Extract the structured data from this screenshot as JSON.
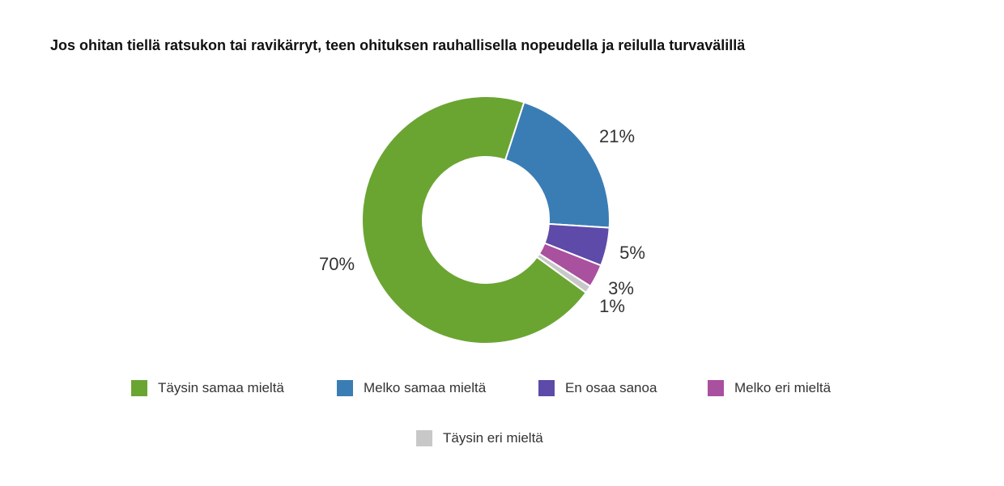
{
  "chart_data": {
    "type": "pie",
    "title": "Jos ohitan tiellä ratsukon tai ravikärryt, teen ohituksen rauhallisella nopeudella ja reilulla turvavälillä",
    "categories": [
      "Täysin samaa mieltä",
      "Melko samaa mieltä",
      "En osaa sanoa",
      "Melko eri mieltä",
      "Täysin eri mieltä"
    ],
    "values": [
      70,
      21,
      5,
      3,
      1
    ],
    "labels": [
      "70%",
      "21%",
      "5%",
      "3%",
      "1%"
    ],
    "colors": [
      "#6aa532",
      "#3a7db5",
      "#5e4aa8",
      "#a9509e",
      "#c8c8c8"
    ],
    "donut": true,
    "legend_position": "bottom"
  }
}
